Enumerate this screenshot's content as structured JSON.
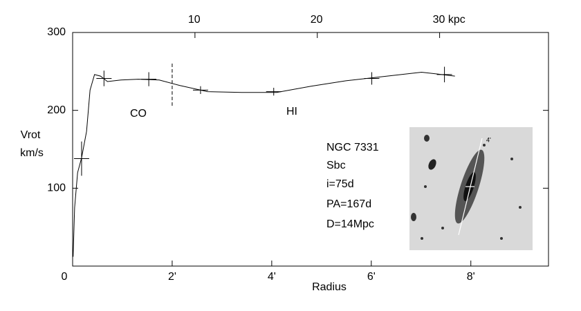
{
  "chart_data": {
    "type": "line",
    "x_label": "Radius",
    "y_label": [
      "Vrot",
      "km/s"
    ],
    "xlim": [
      0,
      9.56
    ],
    "xticks": [
      0,
      {
        "value": 2,
        "label": "2'"
      },
      {
        "value": 4,
        "label": "4'"
      },
      {
        "value": 6,
        "label": "6'"
      },
      {
        "value": 8,
        "label": "8'"
      }
    ],
    "x2lim": [
      0,
      38.9
    ],
    "x2ticks": [
      10,
      20,
      {
        "value": 30,
        "label": "30 kpc"
      }
    ],
    "ylim": [
      0,
      300
    ],
    "yticks": [
      100,
      200,
      300
    ],
    "x": [
      0.01,
      0.04,
      0.1,
      0.18,
      0.28,
      0.35,
      0.44,
      0.56,
      0.7,
      0.97,
      1.32,
      1.74,
      2.15,
      2.71,
      3.4,
      4.1,
      4.79,
      5.49,
      6.32,
      7.01,
      7.68
    ],
    "series": [
      {
        "color": "#000000",
        "values": [
          12,
          75,
          120,
          139,
          173,
          226,
          246,
          244,
          237,
          239,
          240,
          239,
          232,
          224,
          223,
          223,
          231,
          238,
          244,
          249,
          244
        ]
      }
    ],
    "points": {
      "x": [
        0.18,
        0.63,
        1.53,
        2.57,
        4.04,
        6.01,
        7.47
      ],
      "values": [
        138,
        241,
        240,
        226,
        224,
        241,
        246
      ],
      "errors": [
        22,
        10,
        9,
        5,
        5,
        8,
        10
      ]
    },
    "divider_x": 2,
    "annotations": [
      "CO",
      "HI"
    ],
    "info": [
      "NGC 7331",
      "Sbc",
      "i=75d",
      "PA=167d",
      "D=14Mpc"
    ],
    "image_label": "4'"
  }
}
